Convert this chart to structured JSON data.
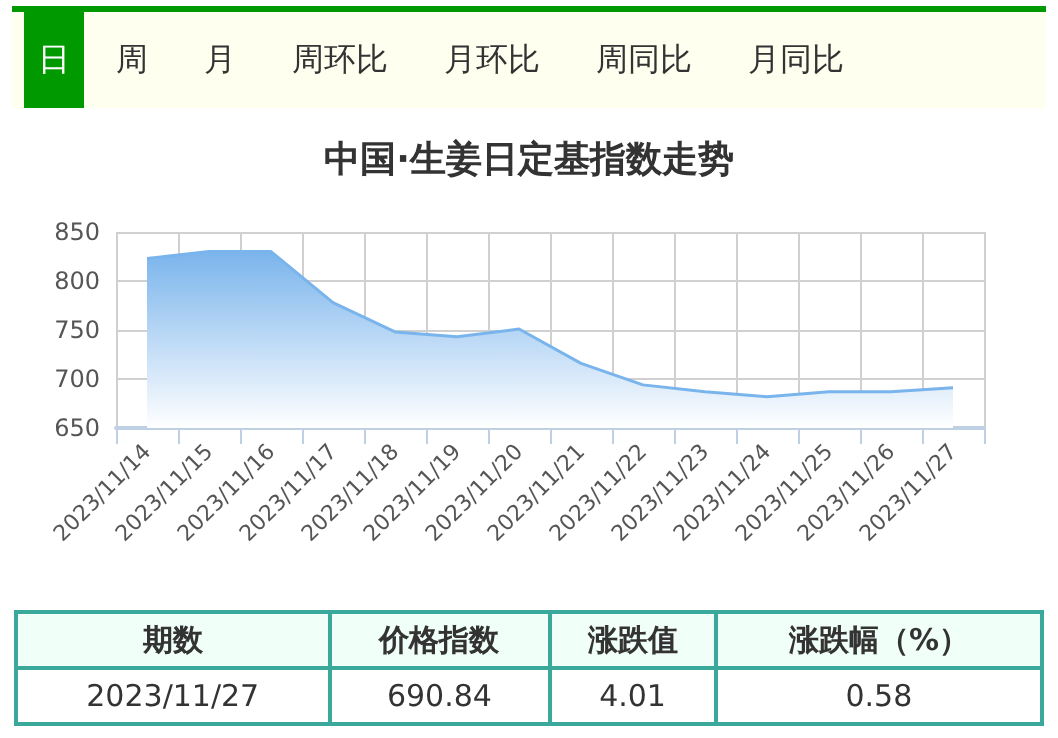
{
  "chart_data": {
    "type": "area",
    "title": "中国·生姜日定基指数走势",
    "categories": [
      "2023/11/14",
      "2023/11/15",
      "2023/11/16",
      "2023/11/17",
      "2023/11/18",
      "2023/11/19",
      "2023/11/20",
      "2023/11/21",
      "2023/11/22",
      "2023/11/23",
      "2023/11/24",
      "2023/11/25",
      "2023/11/26",
      "2023/11/27"
    ],
    "series": [
      {
        "color": "#7ab4ec",
        "values": [
          823,
          830,
          830,
          778,
          748,
          743,
          751,
          716,
          694,
          687,
          682,
          687,
          687,
          691
        ]
      }
    ],
    "ylim": [
      650,
      850
    ],
    "yticks": [
      650,
      700,
      750,
      800,
      850
    ],
    "grid": true,
    "marker": "none",
    "line_style": "solid",
    "annotations": [
      "日",
      "周",
      "月",
      "周环比",
      "月环比",
      "周同比",
      "月同比",
      "期数",
      "价格指数",
      "涨跌值",
      "涨跌幅（%）",
      "2023/11/27",
      "690.84",
      "4.01",
      "0.58"
    ]
  }
}
